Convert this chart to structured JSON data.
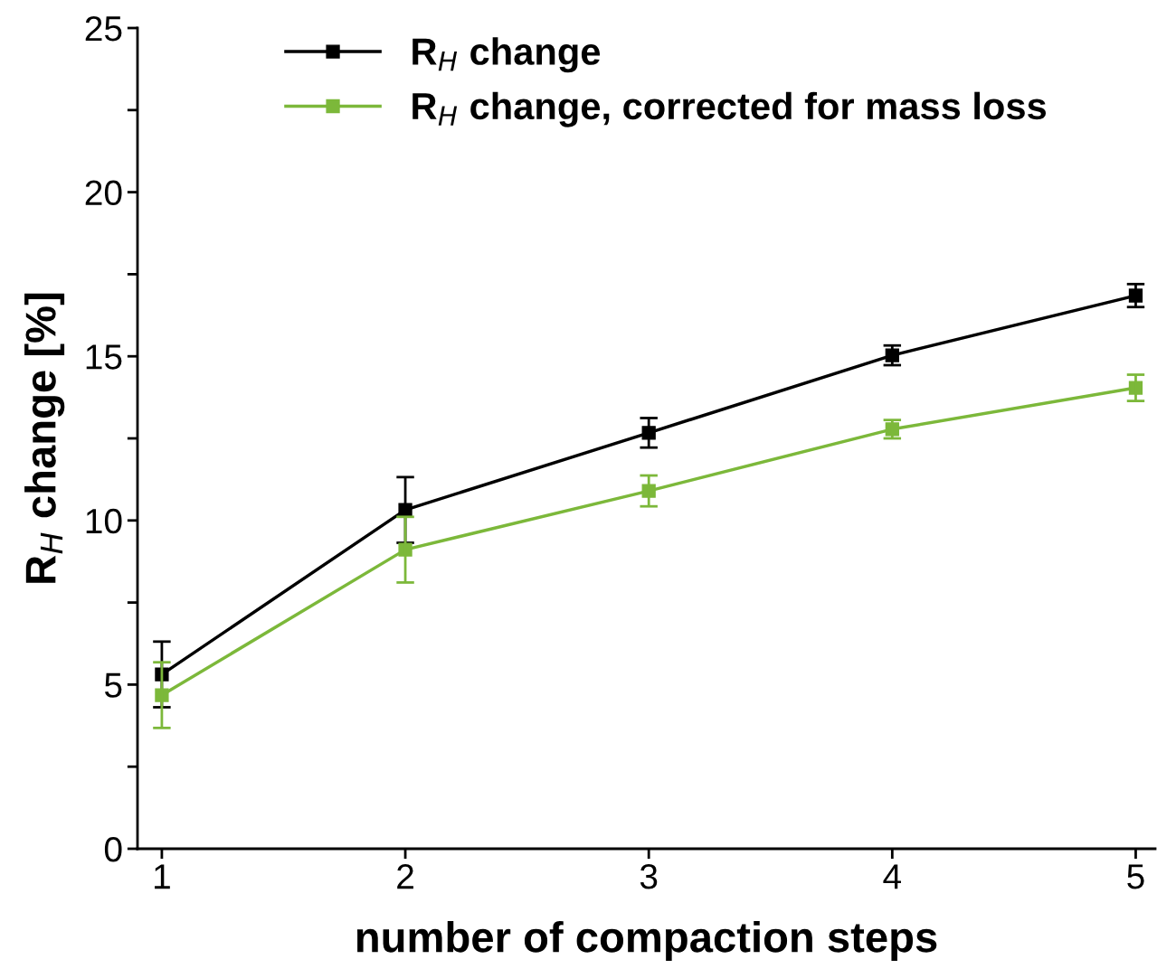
{
  "chart_data": {
    "type": "line",
    "xlabel": "number of compaction steps",
    "ylabel": "R$_{H}$ change [%]",
    "x": [
      1,
      2,
      3,
      4,
      5
    ],
    "series": [
      {
        "name": "R$_{H}$ change",
        "color": "#000000",
        "values": [
          5.31,
          10.32,
          12.67,
          15.03,
          16.85
        ],
        "errors": [
          1.0,
          1.0,
          0.45,
          0.3,
          0.35
        ]
      },
      {
        "name": "R$_{H}$ change, corrected for mass loss",
        "color": "#7cb83a",
        "values": [
          4.68,
          9.11,
          10.9,
          12.78,
          14.04
        ],
        "errors": [
          1.0,
          1.0,
          0.47,
          0.28,
          0.4
        ]
      }
    ],
    "xlim": [
      0.9,
      5.08
    ],
    "xticks": [
      1,
      2,
      3,
      4,
      5
    ],
    "ylim": [
      0,
      25
    ],
    "yticks": [
      0,
      {
        "value": 2.5,
        "label": null
      },
      5,
      {
        "value": 7.5,
        "label": null
      },
      10,
      {
        "value": 12.5,
        "label": null
      },
      15,
      {
        "value": 17.5,
        "label": null
      },
      20,
      {
        "value": 22.5,
        "label": null
      },
      25
    ],
    "grid": false,
    "legend": "top",
    "marker": "square",
    "line_style": "solid"
  }
}
